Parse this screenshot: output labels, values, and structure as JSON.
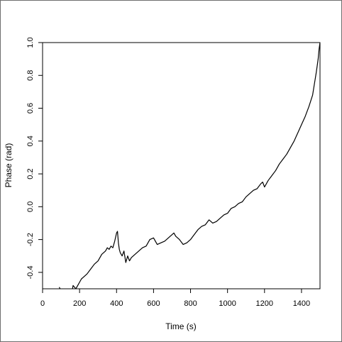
{
  "chart_data": {
    "type": "line",
    "xlabel": "Time (s)",
    "ylabel": "Phase (rad)",
    "xlim": [
      0,
      1500
    ],
    "ylim": [
      -0.5,
      1.0
    ],
    "x_ticks": [
      0,
      200,
      400,
      600,
      800,
      1000,
      1200,
      1400
    ],
    "x_tick_labels": [
      "0",
      "200",
      "400",
      "600",
      "800",
      "1000",
      "1200",
      "1400"
    ],
    "y_ticks": [
      -0.4,
      -0.2,
      0.0,
      0.2,
      0.4,
      0.6,
      0.8,
      1.0
    ],
    "y_tick_labels": [
      "-0.4",
      "-0.2",
      "0.0",
      "0.2",
      "0.4",
      "0.6",
      "0.8",
      "1.0"
    ],
    "grid": false,
    "line_color": "#000000",
    "series": [
      {
        "x": [
          90,
          95,
          100,
          120,
          140,
          160,
          165,
          180,
          185,
          195,
          200,
          210,
          220,
          240,
          260,
          280,
          300,
          320,
          340,
          350,
          360,
          370,
          380,
          390,
          400,
          405,
          410,
          415,
          420,
          430,
          440,
          450,
          460,
          470,
          480,
          500,
          520,
          540,
          560,
          580,
          600,
          620,
          640,
          660,
          680,
          700,
          710,
          720,
          740,
          760,
          780,
          800,
          820,
          840,
          860,
          880,
          900,
          920,
          940,
          960,
          980,
          1000,
          1020,
          1040,
          1060,
          1080,
          1100,
          1120,
          1140,
          1160,
          1180,
          1190,
          1200,
          1220,
          1240,
          1260,
          1280,
          1300,
          1320,
          1340,
          1360,
          1380,
          1400,
          1420,
          1440,
          1460,
          1470,
          1480,
          1490,
          1495,
          1500
        ],
        "y": [
          -0.49,
          -0.5,
          -0.51,
          -0.52,
          -0.53,
          -0.51,
          -0.48,
          -0.5,
          -0.49,
          -0.47,
          -0.46,
          -0.44,
          -0.43,
          -0.41,
          -0.38,
          -0.35,
          -0.33,
          -0.29,
          -0.27,
          -0.25,
          -0.26,
          -0.24,
          -0.25,
          -0.21,
          -0.16,
          -0.15,
          -0.22,
          -0.26,
          -0.28,
          -0.3,
          -0.27,
          -0.34,
          -0.3,
          -0.33,
          -0.31,
          -0.29,
          -0.27,
          -0.25,
          -0.24,
          -0.2,
          -0.19,
          -0.23,
          -0.22,
          -0.21,
          -0.19,
          -0.17,
          -0.16,
          -0.18,
          -0.2,
          -0.23,
          -0.22,
          -0.2,
          -0.17,
          -0.14,
          -0.12,
          -0.11,
          -0.08,
          -0.1,
          -0.09,
          -0.07,
          -0.05,
          -0.04,
          -0.01,
          0.0,
          0.02,
          0.03,
          0.06,
          0.08,
          0.1,
          0.11,
          0.14,
          0.15,
          0.12,
          0.16,
          0.19,
          0.22,
          0.26,
          0.29,
          0.32,
          0.36,
          0.4,
          0.45,
          0.5,
          0.55,
          0.61,
          0.68,
          0.75,
          0.82,
          0.9,
          0.96,
          1.0
        ]
      }
    ]
  }
}
